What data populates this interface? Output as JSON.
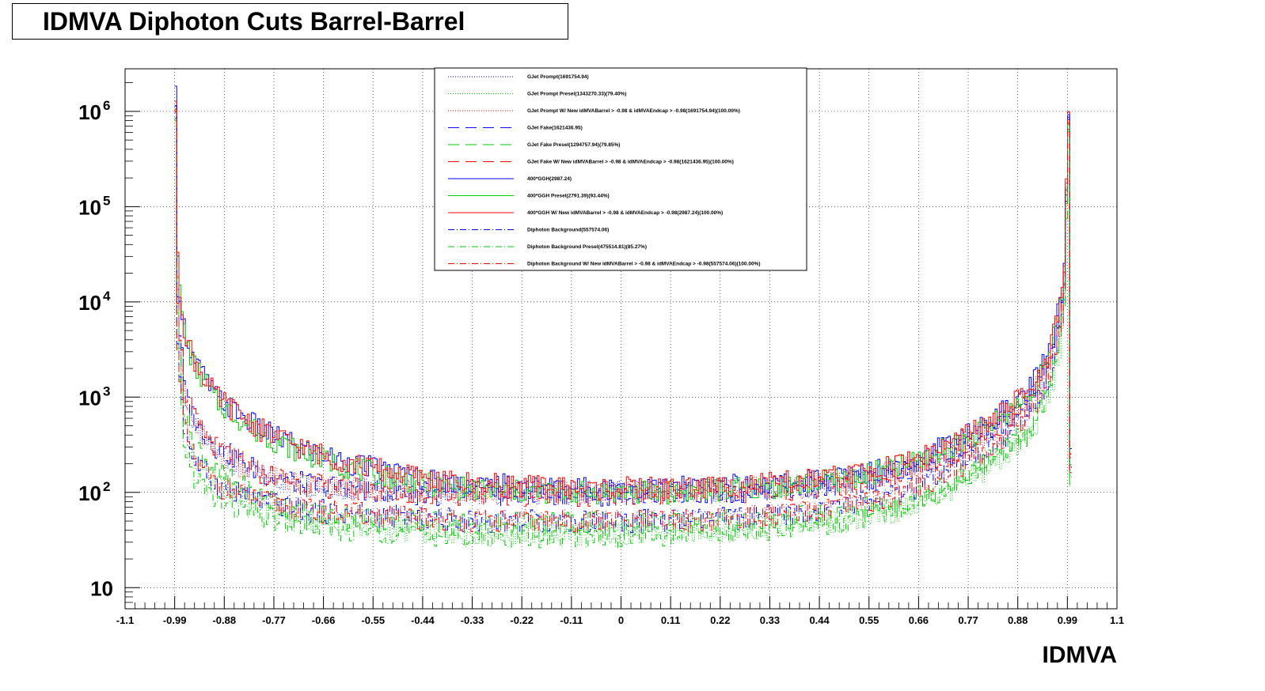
{
  "chart_data": {
    "type": "line",
    "title": "IDMVA Diphoton Cuts Barrel-Barrel",
    "xlabel": "IDMVA",
    "ylabel": "",
    "xlim": [
      -1.1,
      1.1
    ],
    "ylim": [
      6,
      2800000
    ],
    "log_y": true,
    "grid": true,
    "legend_position": "top-center",
    "x_ticks": [
      "-1.1",
      "-0.99",
      "-0.88",
      "-0.77",
      "-0.66",
      "-0.55",
      "-0.44",
      "-0.33",
      "-0.22",
      "-0.11",
      "0",
      "0.11",
      "0.22",
      "0.33",
      "0.44",
      "0.55",
      "0.66",
      "0.77",
      "0.88",
      "0.99",
      "1.1"
    ],
    "y_ticks": [
      {
        "base": "10",
        "exp": "6",
        "value": 1000000
      },
      {
        "base": "10",
        "exp": "5",
        "value": 100000
      },
      {
        "base": "10",
        "exp": "4",
        "value": 10000
      },
      {
        "base": "10",
        "exp": "3",
        "value": 1000
      },
      {
        "base": "10",
        "exp": "2",
        "value": 100
      },
      {
        "base": "10",
        "exp": "",
        "value": 10
      }
    ],
    "x": [
      -0.99,
      -0.985,
      -0.97,
      -0.95,
      -0.9,
      -0.8,
      -0.7,
      -0.6,
      -0.5,
      -0.4,
      -0.3,
      -0.2,
      -0.1,
      0.0,
      0.1,
      0.2,
      0.3,
      0.4,
      0.5,
      0.6,
      0.7,
      0.8,
      0.9,
      0.95,
      0.98,
      0.99,
      0.995
    ],
    "series": [
      {
        "name": "GJet Prompt(1691754.94)",
        "color": "#0000ff",
        "style": "dotted",
        "values": [
          1300000,
          8000,
          900,
          500,
          250,
          150,
          120,
          110,
          105,
          100,
          100,
          100,
          100,
          100,
          100,
          105,
          110,
          115,
          130,
          160,
          230,
          400,
          900,
          2500,
          12000,
          1500000,
          200
        ]
      },
      {
        "name": "GJet Prompt Presel(1343270.33)(79.40%)",
        "color": "#00cc00",
        "style": "dotted",
        "values": [
          1000000,
          5000,
          500,
          250,
          120,
          70,
          50,
          45,
          40,
          38,
          37,
          37,
          37,
          37,
          38,
          40,
          42,
          45,
          50,
          60,
          90,
          160,
          350,
          1000,
          5000,
          1200000,
          150
        ]
      },
      {
        "name": "GJet Prompt W/ New idMVABarrel > -0.98 & idMVAEndcap > -0.98(1691754.94)(100.00%)",
        "color": "#ff0000",
        "style": "dotted",
        "values": [
          1300000,
          8000,
          900,
          500,
          250,
          150,
          120,
          110,
          105,
          100,
          100,
          100,
          100,
          100,
          100,
          105,
          110,
          115,
          130,
          160,
          230,
          400,
          900,
          2500,
          12000,
          1500000,
          200
        ]
      },
      {
        "name": "GJet Fake(1621436.95)",
        "color": "#0000ff",
        "style": "dashed",
        "values": [
          1300000,
          9000,
          1200,
          600,
          300,
          160,
          120,
          110,
          100,
          95,
          95,
          95,
          95,
          95,
          98,
          100,
          105,
          110,
          120,
          150,
          220,
          380,
          850,
          2300,
          11000,
          1000000,
          200
        ]
      },
      {
        "name": "GJet Fake Presel(1294757.94)(79.85%)",
        "color": "#00cc00",
        "style": "dashed",
        "values": [
          1000000,
          6000,
          700,
          350,
          160,
          90,
          60,
          55,
          50,
          48,
          47,
          47,
          47,
          47,
          48,
          50,
          52,
          55,
          62,
          75,
          110,
          190,
          420,
          1200,
          6000,
          800000,
          150
        ]
      },
      {
        "name": "GJet Fake W/ New idMVABarrel > -0.98 & idMVAEndcap > -0.98(1621436.95)(100.00%)",
        "color": "#ff0000",
        "style": "dashed",
        "values": [
          1300000,
          9000,
          1200,
          600,
          300,
          160,
          120,
          110,
          100,
          95,
          95,
          95,
          95,
          95,
          98,
          100,
          105,
          110,
          120,
          150,
          220,
          380,
          850,
          2300,
          11000,
          1000000,
          200
        ]
      },
      {
        "name": "400*GGH(2987.24)",
        "color": "#0000ff",
        "style": "solid",
        "values": [
          1400000,
          20000,
          5000,
          2500,
          1000,
          450,
          280,
          200,
          160,
          130,
          120,
          115,
          110,
          110,
          110,
          115,
          120,
          130,
          150,
          190,
          280,
          480,
          1100,
          3000,
          15000,
          1100000,
          250
        ]
      },
      {
        "name": "400*GGH Presel(2791.39)(93.44%)",
        "color": "#00cc00",
        "style": "solid",
        "values": [
          1300000,
          18000,
          4500,
          2200,
          900,
          400,
          250,
          180,
          140,
          115,
          105,
          100,
          100,
          100,
          100,
          105,
          110,
          120,
          140,
          175,
          260,
          440,
          1000,
          2800,
          14000,
          1000000,
          220
        ]
      },
      {
        "name": "400*GGH W/ New idMVABarrel > -0.98 & idMVAEndcap > -0.98(2987.24)(100.00%)",
        "color": "#ff0000",
        "style": "solid",
        "values": [
          1400000,
          20000,
          5000,
          2500,
          1000,
          450,
          280,
          200,
          160,
          130,
          120,
          115,
          110,
          110,
          110,
          115,
          120,
          130,
          150,
          190,
          280,
          480,
          1100,
          3000,
          15000,
          1100000,
          250
        ]
      },
      {
        "name": "Diphoton Background(557574.06)",
        "color": "#0000ff",
        "style": "dashdot",
        "values": [
          900000,
          3000,
          450,
          220,
          120,
          80,
          65,
          60,
          55,
          52,
          50,
          50,
          50,
          50,
          50,
          52,
          55,
          60,
          70,
          90,
          140,
          260,
          600,
          1800,
          9000,
          1500000,
          180
        ]
      },
      {
        "name": "Diphoton Background Presel(475514.81)(85.27%)",
        "color": "#00cc00",
        "style": "dashdot",
        "values": [
          700000,
          2000,
          300,
          150,
          80,
          55,
          45,
          40,
          38,
          36,
          35,
          35,
          35,
          35,
          35,
          37,
          40,
          44,
          50,
          65,
          100,
          190,
          450,
          1400,
          7000,
          1300000,
          150
        ]
      },
      {
        "name": "Diphoton Background W/ New idMVABarrel > -0.98 & idMVAEndcap > -0.98(557574.06)(100.00%)",
        "color": "#ff0000",
        "style": "dashdot",
        "values": [
          900000,
          3000,
          450,
          220,
          120,
          80,
          65,
          60,
          55,
          52,
          50,
          50,
          50,
          50,
          50,
          52,
          55,
          60,
          70,
          90,
          140,
          260,
          600,
          1800,
          9000,
          1500000,
          180
        ]
      }
    ]
  }
}
